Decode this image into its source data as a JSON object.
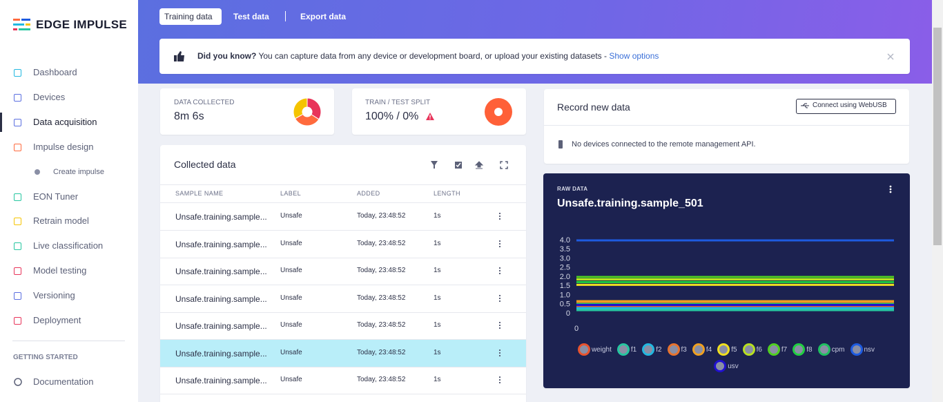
{
  "sidebar": {
    "logo": "EDGE IMPULSE",
    "nav": [
      "Dashboard",
      "Devices",
      "Data acquisition",
      "Impulse design",
      "Create impulse",
      "EON Tuner",
      "Retrain model",
      "Live classification",
      "Model testing",
      "Versioning",
      "Deployment"
    ],
    "section": "GETTING STARTED",
    "docs": "Documentation"
  },
  "tabs": [
    "Training data",
    "Test data",
    "Export data"
  ],
  "banner": {
    "lead": "Did you know?",
    "text": "You can capture data from any device or development board, or upload your existing datasets - ",
    "link": "Show options"
  },
  "stats": [
    {
      "label": "DATA COLLECTED",
      "value": "8m 6s"
    },
    {
      "label": "TRAIN / TEST SPLIT",
      "value": "100% / 0%"
    }
  ],
  "collected": {
    "title": "Collected data",
    "columns": [
      "SAMPLE NAME",
      "LABEL",
      "ADDED",
      "LENGTH"
    ],
    "rows": [
      [
        "Unsafe.training.sample...",
        "Unsafe",
        "Today, 23:48:52",
        "1s"
      ],
      [
        "Unsafe.training.sample...",
        "Unsafe",
        "Today, 23:48:52",
        "1s"
      ],
      [
        "Unsafe.training.sample...",
        "Unsafe",
        "Today, 23:48:52",
        "1s"
      ],
      [
        "Unsafe.training.sample...",
        "Unsafe",
        "Today, 23:48:52",
        "1s"
      ],
      [
        "Unsafe.training.sample...",
        "Unsafe",
        "Today, 23:48:52",
        "1s"
      ],
      [
        "Unsafe.training.sample...",
        "Unsafe",
        "Today, 23:48:52",
        "1s"
      ],
      [
        "Unsafe.training.sample...",
        "Unsafe",
        "Today, 23:48:52",
        "1s"
      ]
    ]
  },
  "record": {
    "title": "Record new data",
    "button": "Connect using WebUSB",
    "message": "No devices connected to the remote management API."
  },
  "chart_data": [
    {
      "type": "line",
      "subtitle": "RAW DATA",
      "title": "Unsafe.training.sample_501",
      "x": [
        0,
        1
      ],
      "xlim": [
        0,
        1
      ],
      "xticks": [
        0
      ],
      "ylim": [
        0,
        4
      ],
      "yticks": [
        0,
        {
          "value": 0.5,
          "label": "0.5"
        },
        {
          "value": 1,
          "label": "1.0"
        },
        {
          "value": 1.5,
          "label": "1.5"
        },
        {
          "value": 2,
          "label": "2.0"
        },
        {
          "value": 2.5,
          "label": "2.5"
        },
        {
          "value": 3,
          "label": "3.0"
        },
        {
          "value": 3.5,
          "label": "3.5"
        },
        {
          "value": 4,
          "label": "4.0"
        }
      ],
      "series": [
        {
          "name": "weight",
          "color": "#e8532e",
          "values": [
            0.42,
            0.42
          ]
        },
        {
          "name": "f1",
          "color": "#26c6a0",
          "values": [
            0.19,
            0.19
          ]
        },
        {
          "name": "f2",
          "color": "#22b8e0",
          "values": [
            0.3,
            0.3
          ]
        },
        {
          "name": "f3",
          "color": "#e8732e",
          "values": [
            0.62,
            0.62
          ]
        },
        {
          "name": "f4",
          "color": "#f0a020",
          "values": [
            0.68,
            0.68
          ]
        },
        {
          "name": "f5",
          "color": "#f0e020",
          "values": [
            1.57,
            1.57
          ]
        },
        {
          "name": "f6",
          "color": "#b8e020",
          "values": [
            1.87,
            1.87
          ]
        },
        {
          "name": "f7",
          "color": "#50d020",
          "values": [
            2.0,
            2.0
          ]
        },
        {
          "name": "f8",
          "color": "#20d040",
          "values": [
            1.72,
            1.72
          ]
        },
        {
          "name": "cpm",
          "color": "#20c060",
          "values": [
            0.53,
            0.53
          ]
        },
        {
          "name": "nsv",
          "color": "#1e5be0",
          "values": [
            4.0,
            4.0
          ]
        },
        {
          "name": "usv",
          "color": "#2010d0",
          "values": [
            0.47,
            0.47
          ]
        }
      ]
    },
    {
      "type": "donut",
      "values": [
        34,
        33,
        33
      ],
      "colors": [
        "#e8345a",
        "#ff6a3d",
        "#f5c400"
      ]
    },
    {
      "type": "donut",
      "values": [
        100,
        0
      ],
      "colors": [
        "#ff6038",
        "#1e5be0"
      ]
    }
  ]
}
